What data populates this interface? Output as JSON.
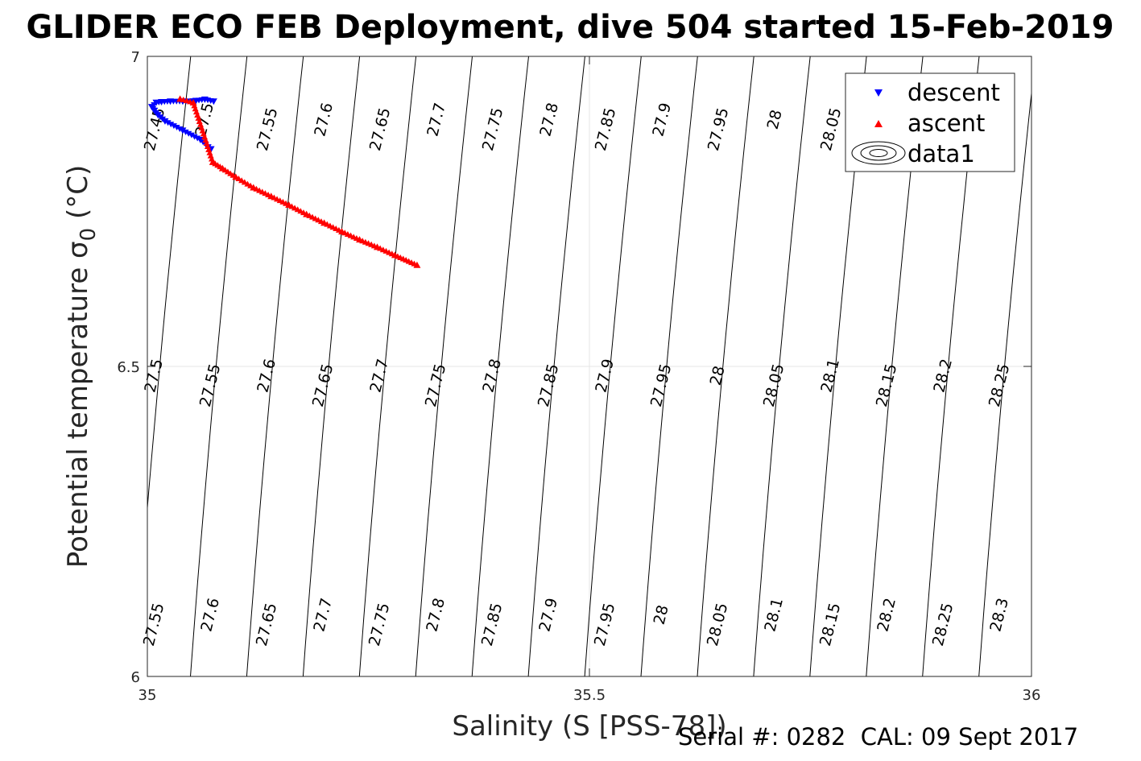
{
  "figure": {
    "title": "GLIDER ECO FEB Deployment, dive 504 started 15-Feb-2019",
    "footer": "Serial #: 0282  CAL: 09 Sept 2017"
  },
  "colors": {
    "descent": "#0000ff",
    "ascent": "#ff0000",
    "contour": "#000000",
    "grid": "#e6e6e6",
    "axis": "#262626"
  },
  "chart_data": {
    "type": "scatter",
    "title": "GLIDER ECO FEB Deployment, dive 504 started 15-Feb-2019",
    "xlabel": "Salinity (S [PSS-78])",
    "ylabel_main": "Potential temperature σ",
    "ylabel_sub": "0",
    "ylabel_unit": "(°C)",
    "xlim": [
      35,
      36
    ],
    "ylim": [
      6,
      7
    ],
    "x_ticks": [
      "35",
      "35.5",
      "36"
    ],
    "y_ticks": [
      "6",
      "6.5",
      "7"
    ],
    "grid": true,
    "legend_position": "top-right",
    "legend": [
      "descent",
      "ascent",
      "data1"
    ],
    "series": [
      {
        "name": "descent",
        "marker": "triangle-down",
        "color": "#0000ff",
        "x": [
          35.072,
          35.06,
          35.04,
          35.02,
          35.012,
          35.008,
          35.005,
          35.01,
          35.016,
          35.026,
          35.04,
          35.055,
          35.065,
          35.075
        ],
        "y": [
          6.85,
          6.865,
          6.88,
          6.895,
          6.905,
          6.912,
          6.918,
          6.925,
          6.926,
          6.927,
          6.927,
          6.928,
          6.93,
          6.927
        ]
      },
      {
        "name": "ascent",
        "marker": "triangle-up",
        "color": "#ff0000",
        "x": [
          35.305,
          35.28,
          35.26,
          35.24,
          35.22,
          35.2,
          35.18,
          35.16,
          35.14,
          35.12,
          35.1,
          35.085,
          35.074,
          35.052,
          35.037
        ],
        "y": [
          6.664,
          6.68,
          6.693,
          6.705,
          6.718,
          6.732,
          6.746,
          6.761,
          6.775,
          6.789,
          6.806,
          6.82,
          6.83,
          6.926,
          6.932
        ]
      }
    ],
    "contours": {
      "name": "data1",
      "levels": [
        "27.45",
        "27.5",
        "27.55",
        "27.6",
        "27.65",
        "27.7",
        "27.75",
        "27.8",
        "27.85",
        "27.9",
        "27.95",
        "28",
        "28.05",
        "28.1",
        "28.15",
        "28.2",
        "28.25",
        "28.3"
      ],
      "label_rows": [
        [
          "27.45",
          "27.5",
          "27.55",
          "27.6",
          "27.65",
          "27.7",
          "27.75",
          "27.8",
          "27.85",
          "27.9",
          "27.95",
          "28",
          "28.05"
        ],
        [
          "27.5",
          "27.55",
          "27.6",
          "27.65",
          "27.7",
          "27.75",
          "27.8",
          "27.85",
          "27.9",
          "27.95",
          "28",
          "28.05",
          "28.1",
          "28.15",
          "28.2",
          "28.25"
        ],
        [
          "27.55",
          "27.6",
          "27.65",
          "27.7",
          "27.75",
          "27.8",
          "27.85",
          "27.9",
          "27.95",
          "28",
          "28.05",
          "28.1",
          "28.15",
          "28.2",
          "28.25",
          "28.3"
        ]
      ]
    }
  }
}
